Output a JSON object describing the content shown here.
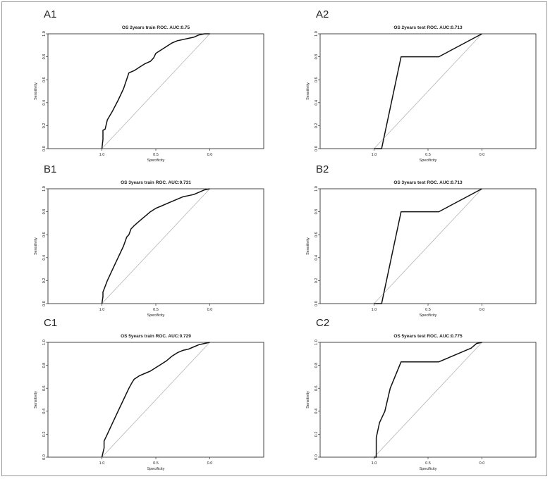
{
  "chart_data": [
    {
      "type": "line",
      "panel_label": "A1",
      "title": "OS 2years train ROC. AUC:0.75",
      "xlabel": "Specificity",
      "ylabel": "Sensitivity",
      "xlim": [
        1.5,
        -0.5
      ],
      "ylim": [
        0,
        1
      ],
      "x_ticks": [
        1.0,
        0.5,
        0.0
      ],
      "x_tick_labels": [
        "1.0",
        "0.5",
        "0.0"
      ],
      "y_ticks": [
        0.0,
        0.2,
        0.4,
        0.6,
        0.8,
        1.0
      ],
      "y_tick_labels": [
        "0.0",
        "0.2",
        "0.4",
        "0.6",
        "0.8",
        "1.0"
      ],
      "reference_line": true,
      "series": [
        {
          "x": [
            1.0,
            0.99,
            0.99,
            0.97,
            0.95,
            0.9,
            0.85,
            0.8,
            0.75,
            0.7,
            0.65,
            0.6,
            0.55,
            0.52,
            0.5,
            0.45,
            0.4,
            0.35,
            0.3,
            0.25,
            0.2,
            0.15,
            0.1,
            0.05,
            0.0
          ],
          "y": [
            0.0,
            0.08,
            0.16,
            0.17,
            0.25,
            0.33,
            0.42,
            0.52,
            0.66,
            0.68,
            0.71,
            0.74,
            0.76,
            0.79,
            0.83,
            0.86,
            0.89,
            0.92,
            0.94,
            0.95,
            0.96,
            0.97,
            0.99,
            1.0,
            1.0
          ]
        }
      ]
    },
    {
      "type": "line",
      "panel_label": "A2",
      "title": "OS 2years test ROC. AUC:0.713",
      "xlabel": "Specificity",
      "ylabel": "Sensitivity",
      "xlim": [
        1.5,
        -0.5
      ],
      "ylim": [
        0,
        1
      ],
      "x_ticks": [
        1.0,
        0.5,
        0.0
      ],
      "x_tick_labels": [
        "1.0",
        "0.5",
        "0.0"
      ],
      "y_ticks": [
        0.0,
        0.2,
        0.4,
        0.6,
        0.8,
        1.0
      ],
      "y_tick_labels": [
        "0.0",
        "0.2",
        "0.4",
        "0.6",
        "0.8",
        "1.0"
      ],
      "reference_line": true,
      "series": [
        {
          "x": [
            1.0,
            0.93,
            0.75,
            0.4,
            0.0
          ],
          "y": [
            0.0,
            0.0,
            0.8,
            0.8,
            1.0
          ]
        }
      ]
    },
    {
      "type": "line",
      "panel_label": "B1",
      "title": "OS 3years train ROC. AUC:0.731",
      "xlabel": "Specificity",
      "ylabel": "Sensitivity",
      "xlim": [
        1.5,
        -0.5
      ],
      "ylim": [
        0,
        1
      ],
      "x_ticks": [
        1.0,
        0.5,
        0.0
      ],
      "x_tick_labels": [
        "1.0",
        "0.5",
        "0.0"
      ],
      "y_ticks": [
        0.0,
        0.2,
        0.4,
        0.6,
        0.8,
        1.0
      ],
      "y_tick_labels": [
        "0.0",
        "0.2",
        "0.4",
        "0.6",
        "0.8",
        "1.0"
      ],
      "reference_line": true,
      "series": [
        {
          "x": [
            1.0,
            0.99,
            0.99,
            0.97,
            0.95,
            0.9,
            0.85,
            0.8,
            0.77,
            0.75,
            0.73,
            0.7,
            0.65,
            0.6,
            0.55,
            0.5,
            0.45,
            0.4,
            0.35,
            0.3,
            0.25,
            0.2,
            0.15,
            0.1,
            0.05,
            0.0
          ],
          "y": [
            0.0,
            0.06,
            0.1,
            0.15,
            0.2,
            0.3,
            0.4,
            0.5,
            0.58,
            0.6,
            0.65,
            0.68,
            0.72,
            0.76,
            0.8,
            0.83,
            0.85,
            0.87,
            0.89,
            0.91,
            0.93,
            0.94,
            0.95,
            0.97,
            0.99,
            1.0
          ]
        }
      ]
    },
    {
      "type": "line",
      "panel_label": "B2",
      "title": "OS 3years test ROC. AUC:0.713",
      "xlabel": "Specificity",
      "ylabel": "Sensitivity",
      "xlim": [
        1.5,
        -0.5
      ],
      "ylim": [
        0,
        1
      ],
      "x_ticks": [
        1.0,
        0.5,
        0.0
      ],
      "x_tick_labels": [
        "1.0",
        "0.5",
        "0.0"
      ],
      "y_ticks": [
        0.0,
        0.2,
        0.4,
        0.6,
        0.8,
        1.0
      ],
      "y_tick_labels": [
        "0.0",
        "0.2",
        "0.4",
        "0.6",
        "0.8",
        "1.0"
      ],
      "reference_line": true,
      "series": [
        {
          "x": [
            1.0,
            0.93,
            0.75,
            0.4,
            0.0
          ],
          "y": [
            0.0,
            0.0,
            0.8,
            0.8,
            1.0
          ]
        }
      ]
    },
    {
      "type": "line",
      "panel_label": "C1",
      "title": "OS 5years train ROC. AUC:0.729",
      "xlabel": "Specificity",
      "ylabel": "Sensitivity",
      "xlim": [
        1.5,
        -0.5
      ],
      "ylim": [
        0,
        1
      ],
      "x_ticks": [
        1.0,
        0.5,
        0.0
      ],
      "x_tick_labels": [
        "1.0",
        "0.5",
        "0.0"
      ],
      "y_ticks": [
        0.0,
        0.2,
        0.4,
        0.6,
        0.8,
        1.0
      ],
      "y_tick_labels": [
        "0.0",
        "0.2",
        "0.4",
        "0.6",
        "0.8",
        "1.0"
      ],
      "reference_line": true,
      "series": [
        {
          "x": [
            1.0,
            0.98,
            0.98,
            0.95,
            0.9,
            0.85,
            0.8,
            0.75,
            0.72,
            0.7,
            0.65,
            0.6,
            0.55,
            0.5,
            0.45,
            0.4,
            0.35,
            0.3,
            0.25,
            0.2,
            0.15,
            0.1,
            0.05,
            0.0
          ],
          "y": [
            0.0,
            0.08,
            0.14,
            0.2,
            0.3,
            0.4,
            0.5,
            0.6,
            0.65,
            0.68,
            0.71,
            0.73,
            0.75,
            0.78,
            0.81,
            0.84,
            0.88,
            0.91,
            0.93,
            0.94,
            0.96,
            0.98,
            0.99,
            1.0
          ]
        }
      ]
    },
    {
      "type": "line",
      "panel_label": "C2",
      "title": "OS 5years test ROC. AUC:0.775",
      "xlabel": "Specificity",
      "ylabel": "Sensitivity",
      "xlim": [
        1.5,
        -0.5
      ],
      "ylim": [
        0,
        1
      ],
      "x_ticks": [
        1.0,
        0.5,
        0.0
      ],
      "x_tick_labels": [
        "1.0",
        "0.5",
        "0.0"
      ],
      "y_ticks": [
        0.0,
        0.2,
        0.4,
        0.6,
        0.8,
        1.0
      ],
      "y_tick_labels": [
        "0.0",
        "0.2",
        "0.4",
        "0.6",
        "0.8",
        "1.0"
      ],
      "reference_line": true,
      "series": [
        {
          "x": [
            1.0,
            0.98,
            0.98,
            0.95,
            0.9,
            0.85,
            0.75,
            0.4,
            0.3,
            0.2,
            0.1,
            0.05,
            0.0
          ],
          "y": [
            0.0,
            0.0,
            0.17,
            0.3,
            0.4,
            0.6,
            0.83,
            0.83,
            0.87,
            0.91,
            0.95,
            0.99,
            1.0
          ]
        }
      ]
    }
  ]
}
